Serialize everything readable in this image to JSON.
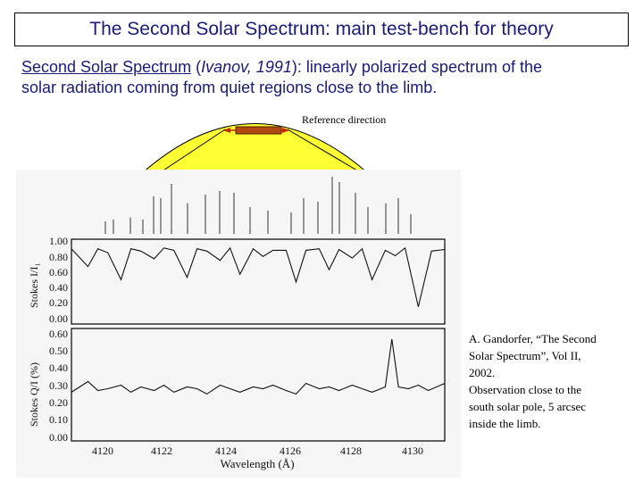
{
  "slide": {
    "title": "The Second Solar Spectrum: main test-bench for theory",
    "subtitle": {
      "term": "Second Solar Spectrum",
      "ref_author": "Ivanov, 1991",
      "rest_line1": ": linearly polarized spectrum of the",
      "line2": "solar radiation coming from quiet regions close to the limb."
    },
    "reference_label": "Reference direction",
    "caption": {
      "line1": "A. Gandorfer, “The Second",
      "line2": "Solar Spectrum”, Vol II,",
      "line3": "2002.",
      "line4": "Observation close to the",
      "line5": "south solar pole, 5 arcsec",
      "line6": "inside the limb."
    }
  },
  "figure": {
    "top_ylabel": "Stokes I/I₁",
    "bottom_ylabel": "Stokes Q/I (%)",
    "xlabel": "Wavelength (Å)",
    "top_ticks": [
      "1.00",
      "0.80",
      "0.60",
      "0.40",
      "0.20",
      "0.00"
    ],
    "bottom_ticks": [
      "0.60",
      "0.50",
      "0.40",
      "0.30",
      "0.20",
      "0.10",
      "0.00"
    ],
    "x_ticks": [
      "4120",
      "4122",
      "4124",
      "4126",
      "4128",
      "4130"
    ]
  },
  "chart_data": [
    {
      "type": "line",
      "ylabel": "Stokes I/I₁",
      "xlabel": "Wavelength (Å)",
      "xlim": [
        4119.5,
        4130.8
      ],
      "ylim": [
        0.0,
        1.05
      ],
      "yticks": [
        1.0,
        0.8,
        0.6,
        0.4,
        0.2,
        0.0
      ],
      "x": [
        4119.5,
        4120.0,
        4120.3,
        4120.6,
        4121.0,
        4121.3,
        4121.6,
        4122.0,
        4122.3,
        4122.6,
        4123.0,
        4123.3,
        4123.6,
        4124.0,
        4124.3,
        4124.6,
        4125.0,
        4125.3,
        4125.6,
        4126.0,
        4126.3,
        4126.6,
        4127.0,
        4127.3,
        4127.6,
        4128.0,
        4128.3,
        4128.6,
        4129.0,
        4129.3,
        4129.6,
        4130.0,
        4130.4,
        4130.8
      ],
      "y": [
        0.95,
        0.72,
        0.95,
        0.9,
        0.55,
        0.95,
        0.92,
        0.82,
        0.96,
        0.93,
        0.58,
        0.95,
        0.92,
        0.8,
        0.96,
        0.62,
        0.95,
        0.85,
        0.93,
        0.93,
        0.52,
        0.93,
        0.95,
        0.68,
        0.94,
        0.83,
        0.95,
        0.55,
        0.93,
        0.86,
        0.96,
        0.2,
        0.92,
        0.94
      ]
    },
    {
      "type": "line",
      "ylabel": "Stokes Q/I (%)",
      "xlabel": "Wavelength (Å)",
      "xlim": [
        4119.5,
        4130.8
      ],
      "ylim": [
        0.0,
        0.62
      ],
      "yticks": [
        0.6,
        0.5,
        0.4,
        0.3,
        0.2,
        0.1,
        0.0
      ],
      "x": [
        4119.5,
        4120.0,
        4120.3,
        4120.6,
        4121.0,
        4121.3,
        4121.6,
        4122.0,
        4122.3,
        4122.6,
        4123.0,
        4123.3,
        4123.6,
        4124.0,
        4124.3,
        4124.6,
        4125.0,
        4125.3,
        4125.6,
        4126.0,
        4126.3,
        4126.6,
        4127.0,
        4127.3,
        4127.6,
        4128.0,
        4128.3,
        4128.6,
        4129.0,
        4129.2,
        4129.4,
        4129.7,
        4130.0,
        4130.3,
        4130.8
      ],
      "y": [
        0.27,
        0.33,
        0.28,
        0.29,
        0.31,
        0.27,
        0.3,
        0.28,
        0.31,
        0.27,
        0.3,
        0.29,
        0.26,
        0.31,
        0.29,
        0.27,
        0.3,
        0.29,
        0.31,
        0.28,
        0.26,
        0.32,
        0.29,
        0.3,
        0.28,
        0.31,
        0.29,
        0.27,
        0.3,
        0.57,
        0.3,
        0.29,
        0.31,
        0.28,
        0.32
      ]
    }
  ]
}
